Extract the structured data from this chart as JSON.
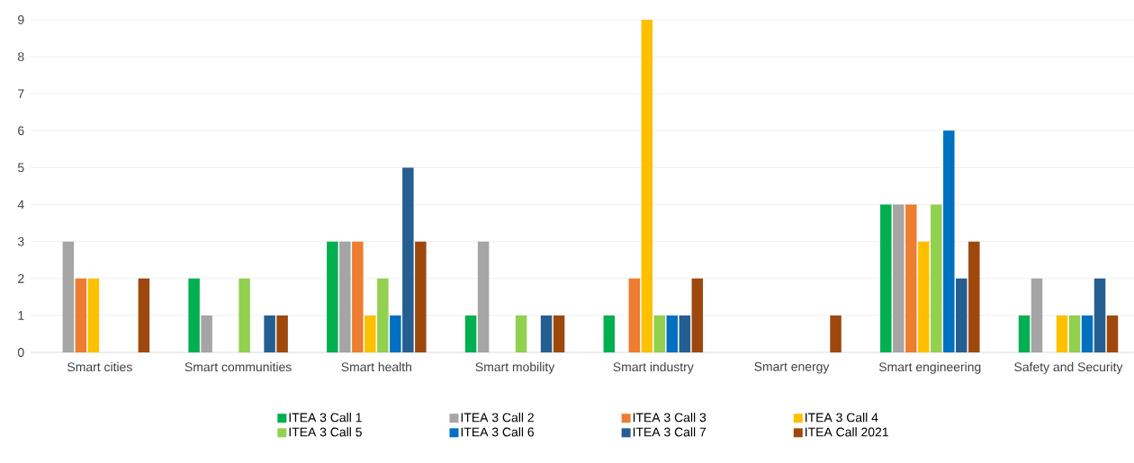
{
  "chart_data": {
    "type": "bar",
    "categories": [
      "Smart cities",
      "Smart communities",
      "Smart health",
      "Smart mobility",
      "Smart industry",
      "Smart energy",
      "Smart engineering",
      "Safety and Security"
    ],
    "series": [
      {
        "name": "ITEA 3 Call 1",
        "color": "#00b050",
        "values": [
          0,
          2,
          3,
          1,
          1,
          0,
          4,
          1
        ]
      },
      {
        "name": "ITEA 3 Call 2",
        "color": "#a5a5a5",
        "values": [
          3,
          1,
          3,
          3,
          0,
          0,
          4,
          2
        ]
      },
      {
        "name": "ITEA 3 Call 3",
        "color": "#ed7d31",
        "values": [
          2,
          0,
          3,
          0,
          2,
          0,
          4,
          0
        ]
      },
      {
        "name": "ITEA 3 Call 4",
        "color": "#ffc000",
        "values": [
          2,
          0,
          1,
          0,
          9,
          0,
          3,
          1
        ]
      },
      {
        "name": "ITEA 3 Call 5",
        "color": "#92d050",
        "values": [
          0,
          2,
          2,
          1,
          1,
          0,
          4,
          1
        ]
      },
      {
        "name": "ITEA 3 Call 6",
        "color": "#0070c0",
        "values": [
          0,
          0,
          1,
          0,
          1,
          0,
          6,
          1
        ]
      },
      {
        "name": "ITEA 3 Call 7",
        "color": "#255e91",
        "values": [
          0,
          1,
          5,
          1,
          1,
          0,
          2,
          2
        ]
      },
      {
        "name": "ITEA Call 2021",
        "color": "#9e480e",
        "values": [
          2,
          1,
          3,
          1,
          2,
          1,
          3,
          1
        ]
      }
    ],
    "ylim": [
      0,
      9
    ],
    "yticks": [
      0,
      1,
      2,
      3,
      4,
      5,
      6,
      7,
      8,
      9
    ],
    "grid": "y",
    "legend": "bottom"
  }
}
